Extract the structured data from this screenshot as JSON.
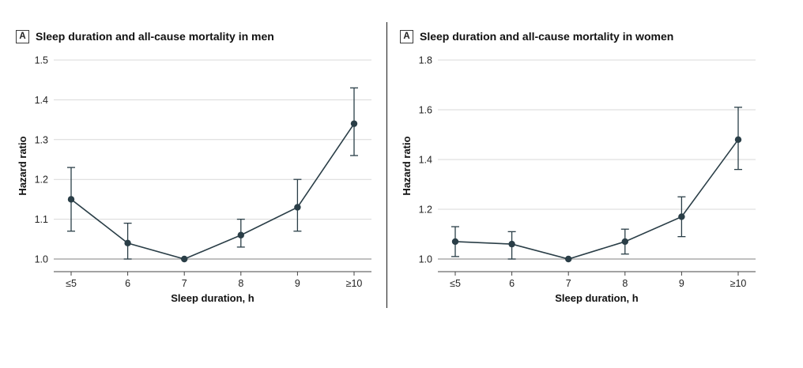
{
  "figure": {
    "background": "#ffffff"
  },
  "colors": {
    "series": "#2a3e47",
    "grid": "#d8d8d8",
    "reference": "#9b9b9b",
    "axis": "#444444",
    "divider": "#1a1a1a"
  },
  "chart_data": [
    {
      "type": "line",
      "panel_label": "A",
      "title": "Sleep duration and all-cause mortality in men",
      "xlabel": "Sleep duration, h",
      "ylabel": "Hazard ratio",
      "categories": [
        "≤5",
        "6",
        "7",
        "8",
        "9",
        "≥10"
      ],
      "values": [
        1.15,
        1.04,
        1.0,
        1.06,
        1.13,
        1.34
      ],
      "ci_low": [
        1.07,
        1.0,
        null,
        1.03,
        1.07,
        1.26
      ],
      "ci_high": [
        1.23,
        1.09,
        null,
        1.1,
        1.2,
        1.43
      ],
      "ylim": [
        1.0,
        1.5
      ],
      "yticks": [
        1.0,
        1.1,
        1.2,
        1.3,
        1.4,
        1.5
      ],
      "reference_line": 1.0,
      "grid": true,
      "legend": "none",
      "line_color": "#2a3e47",
      "grid_color": "#d8d8d8",
      "reference_color": "#9b9b9b"
    },
    {
      "type": "line",
      "panel_label": "A",
      "title": "Sleep duration and all-cause mortality in women",
      "xlabel": "Sleep duration, h",
      "ylabel": "Hazard ratio",
      "categories": [
        "≤5",
        "6",
        "7",
        "8",
        "9",
        "≥10"
      ],
      "values": [
        1.07,
        1.06,
        1.0,
        1.07,
        1.17,
        1.48
      ],
      "ci_low": [
        1.01,
        1.0,
        null,
        1.02,
        1.09,
        1.36
      ],
      "ci_high": [
        1.13,
        1.11,
        null,
        1.12,
        1.25,
        1.61
      ],
      "ylim": [
        1.0,
        1.8
      ],
      "yticks": [
        1.0,
        1.2,
        1.4,
        1.6,
        1.8
      ],
      "reference_line": 1.0,
      "grid": true,
      "legend": "none",
      "line_color": "#2a3e47",
      "grid_color": "#d8d8d8",
      "reference_color": "#9b9b9b"
    }
  ]
}
